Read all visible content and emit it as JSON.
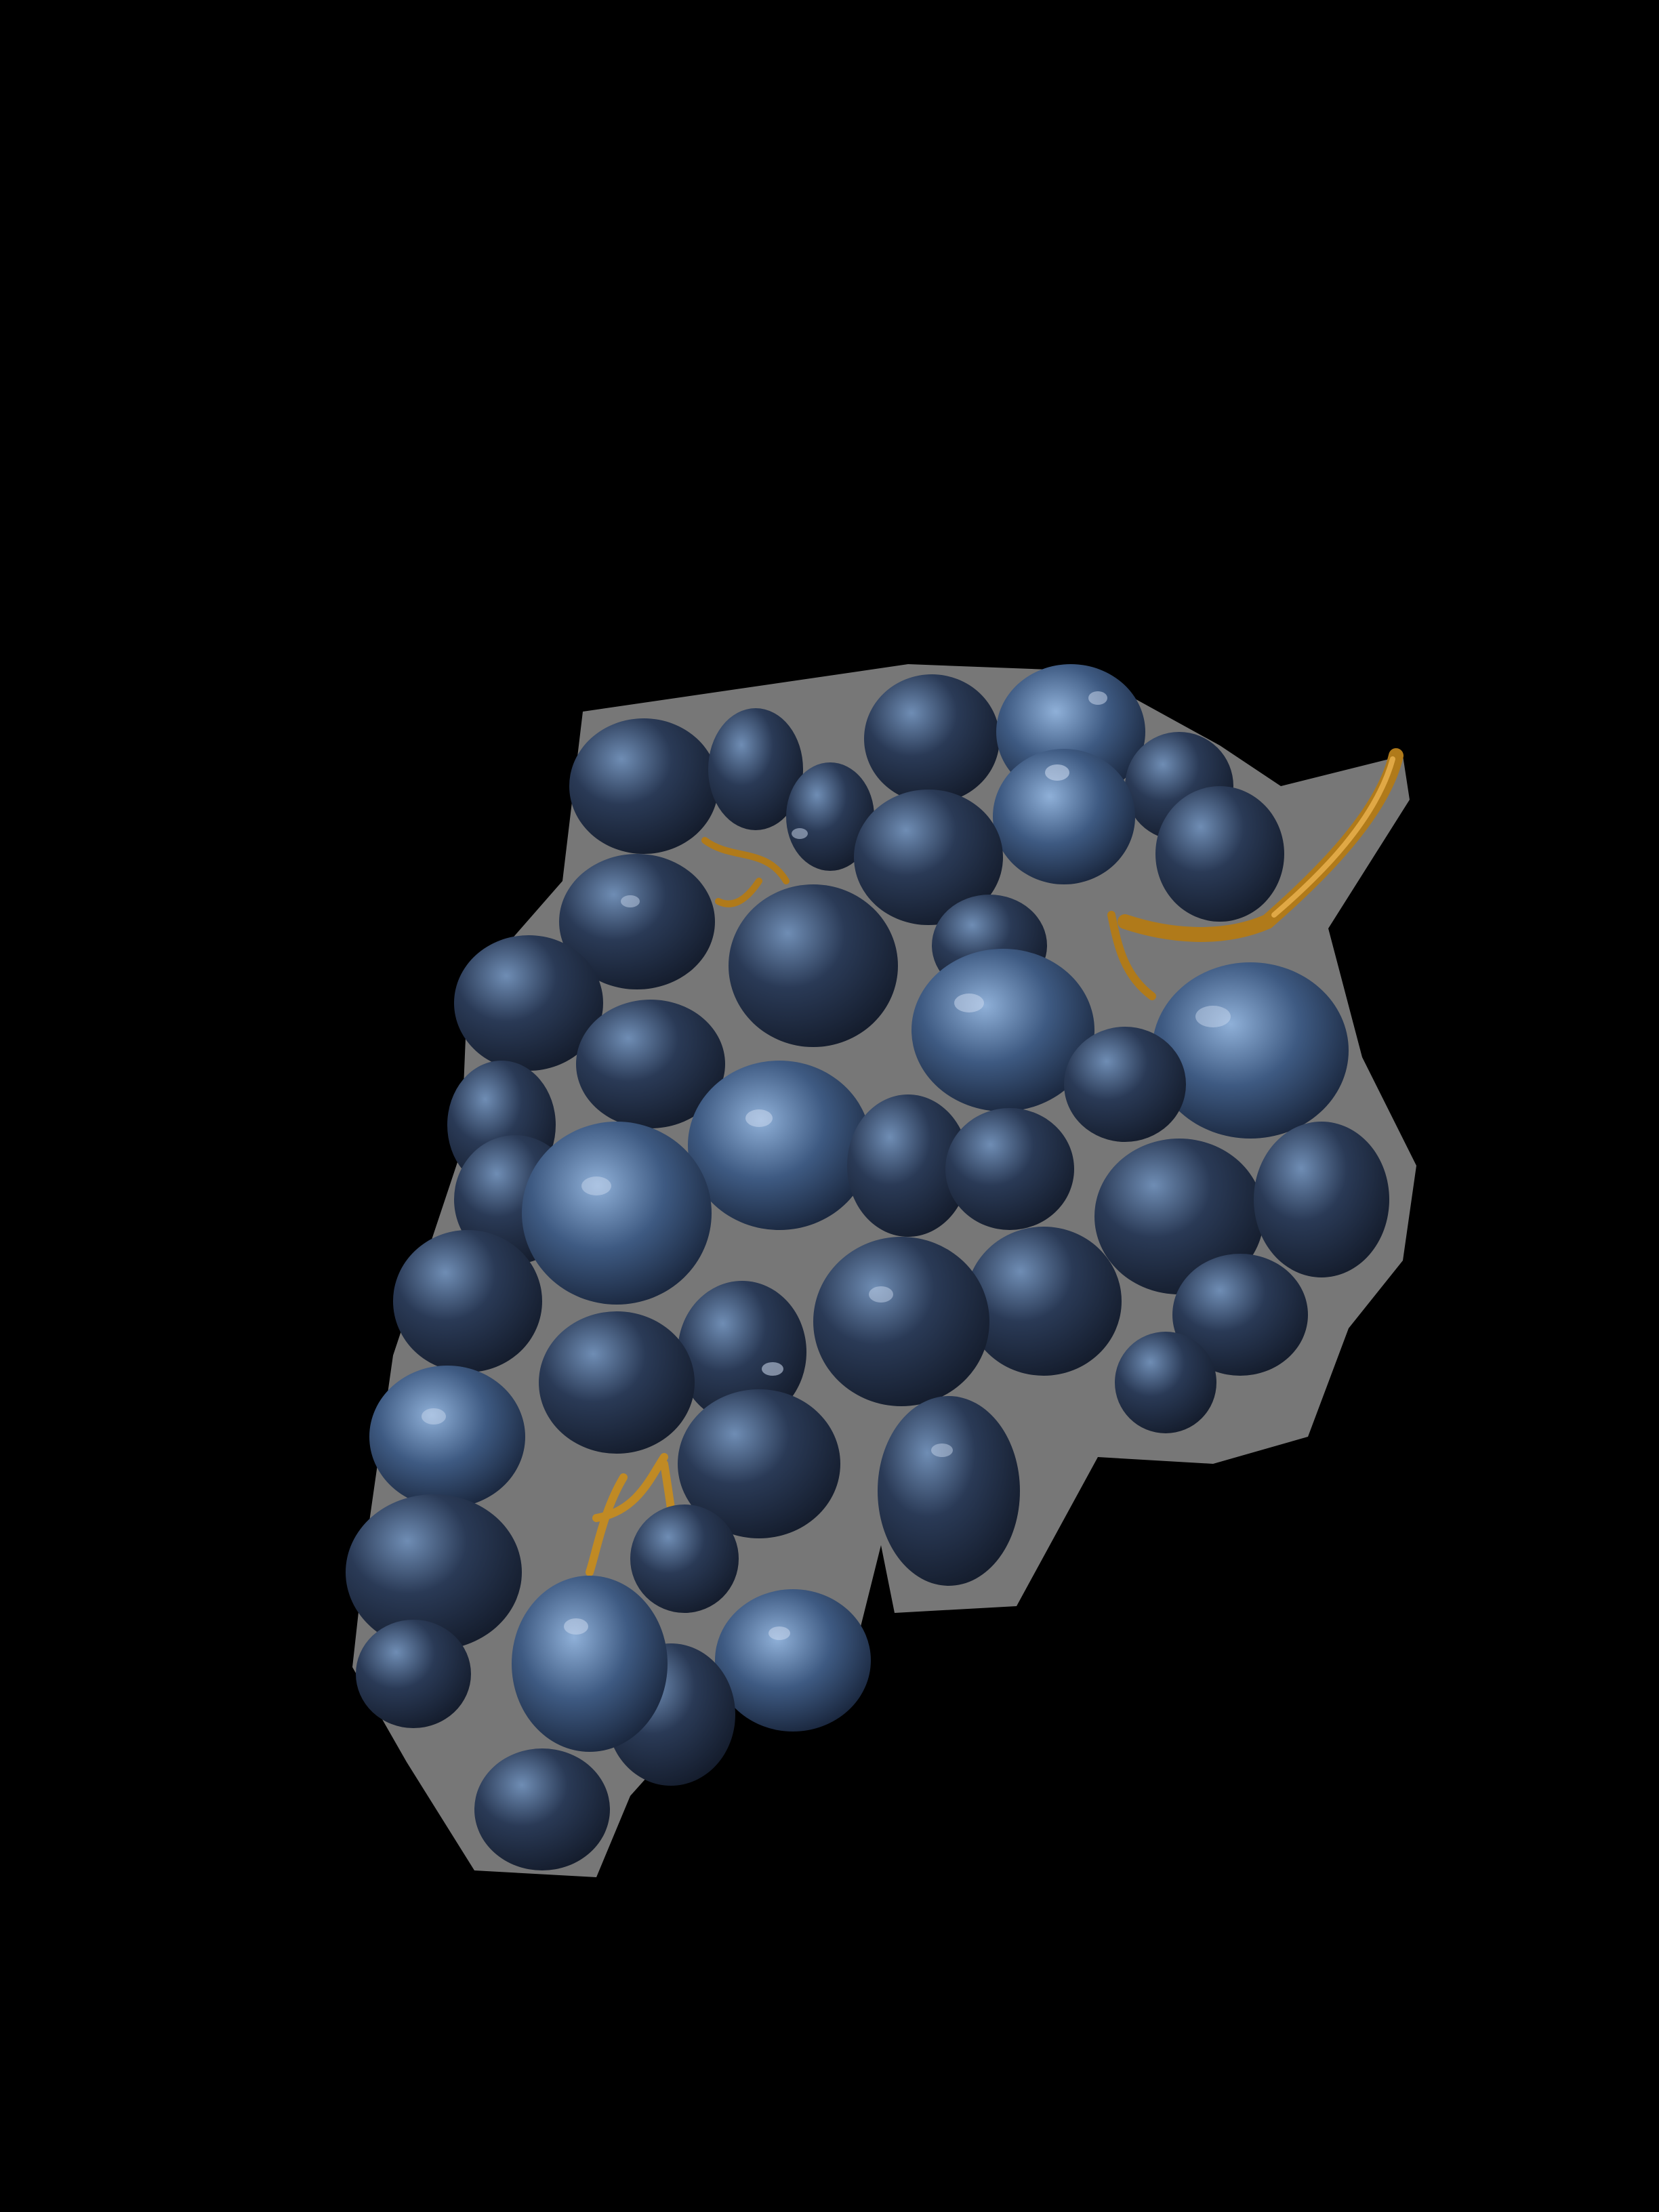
{
  "scene": {
    "subject": "grape-bunch",
    "colors": {
      "background": "#000000",
      "grape_dark": "#141c2c",
      "grape_mid": "#2a3a56",
      "grape_light": "#6f8db4",
      "cutout_halo": "#d9d9d9",
      "stem": "#b07a1a",
      "stem_light": "#e0a845",
      "droplet": "#cfdcf0"
    }
  }
}
